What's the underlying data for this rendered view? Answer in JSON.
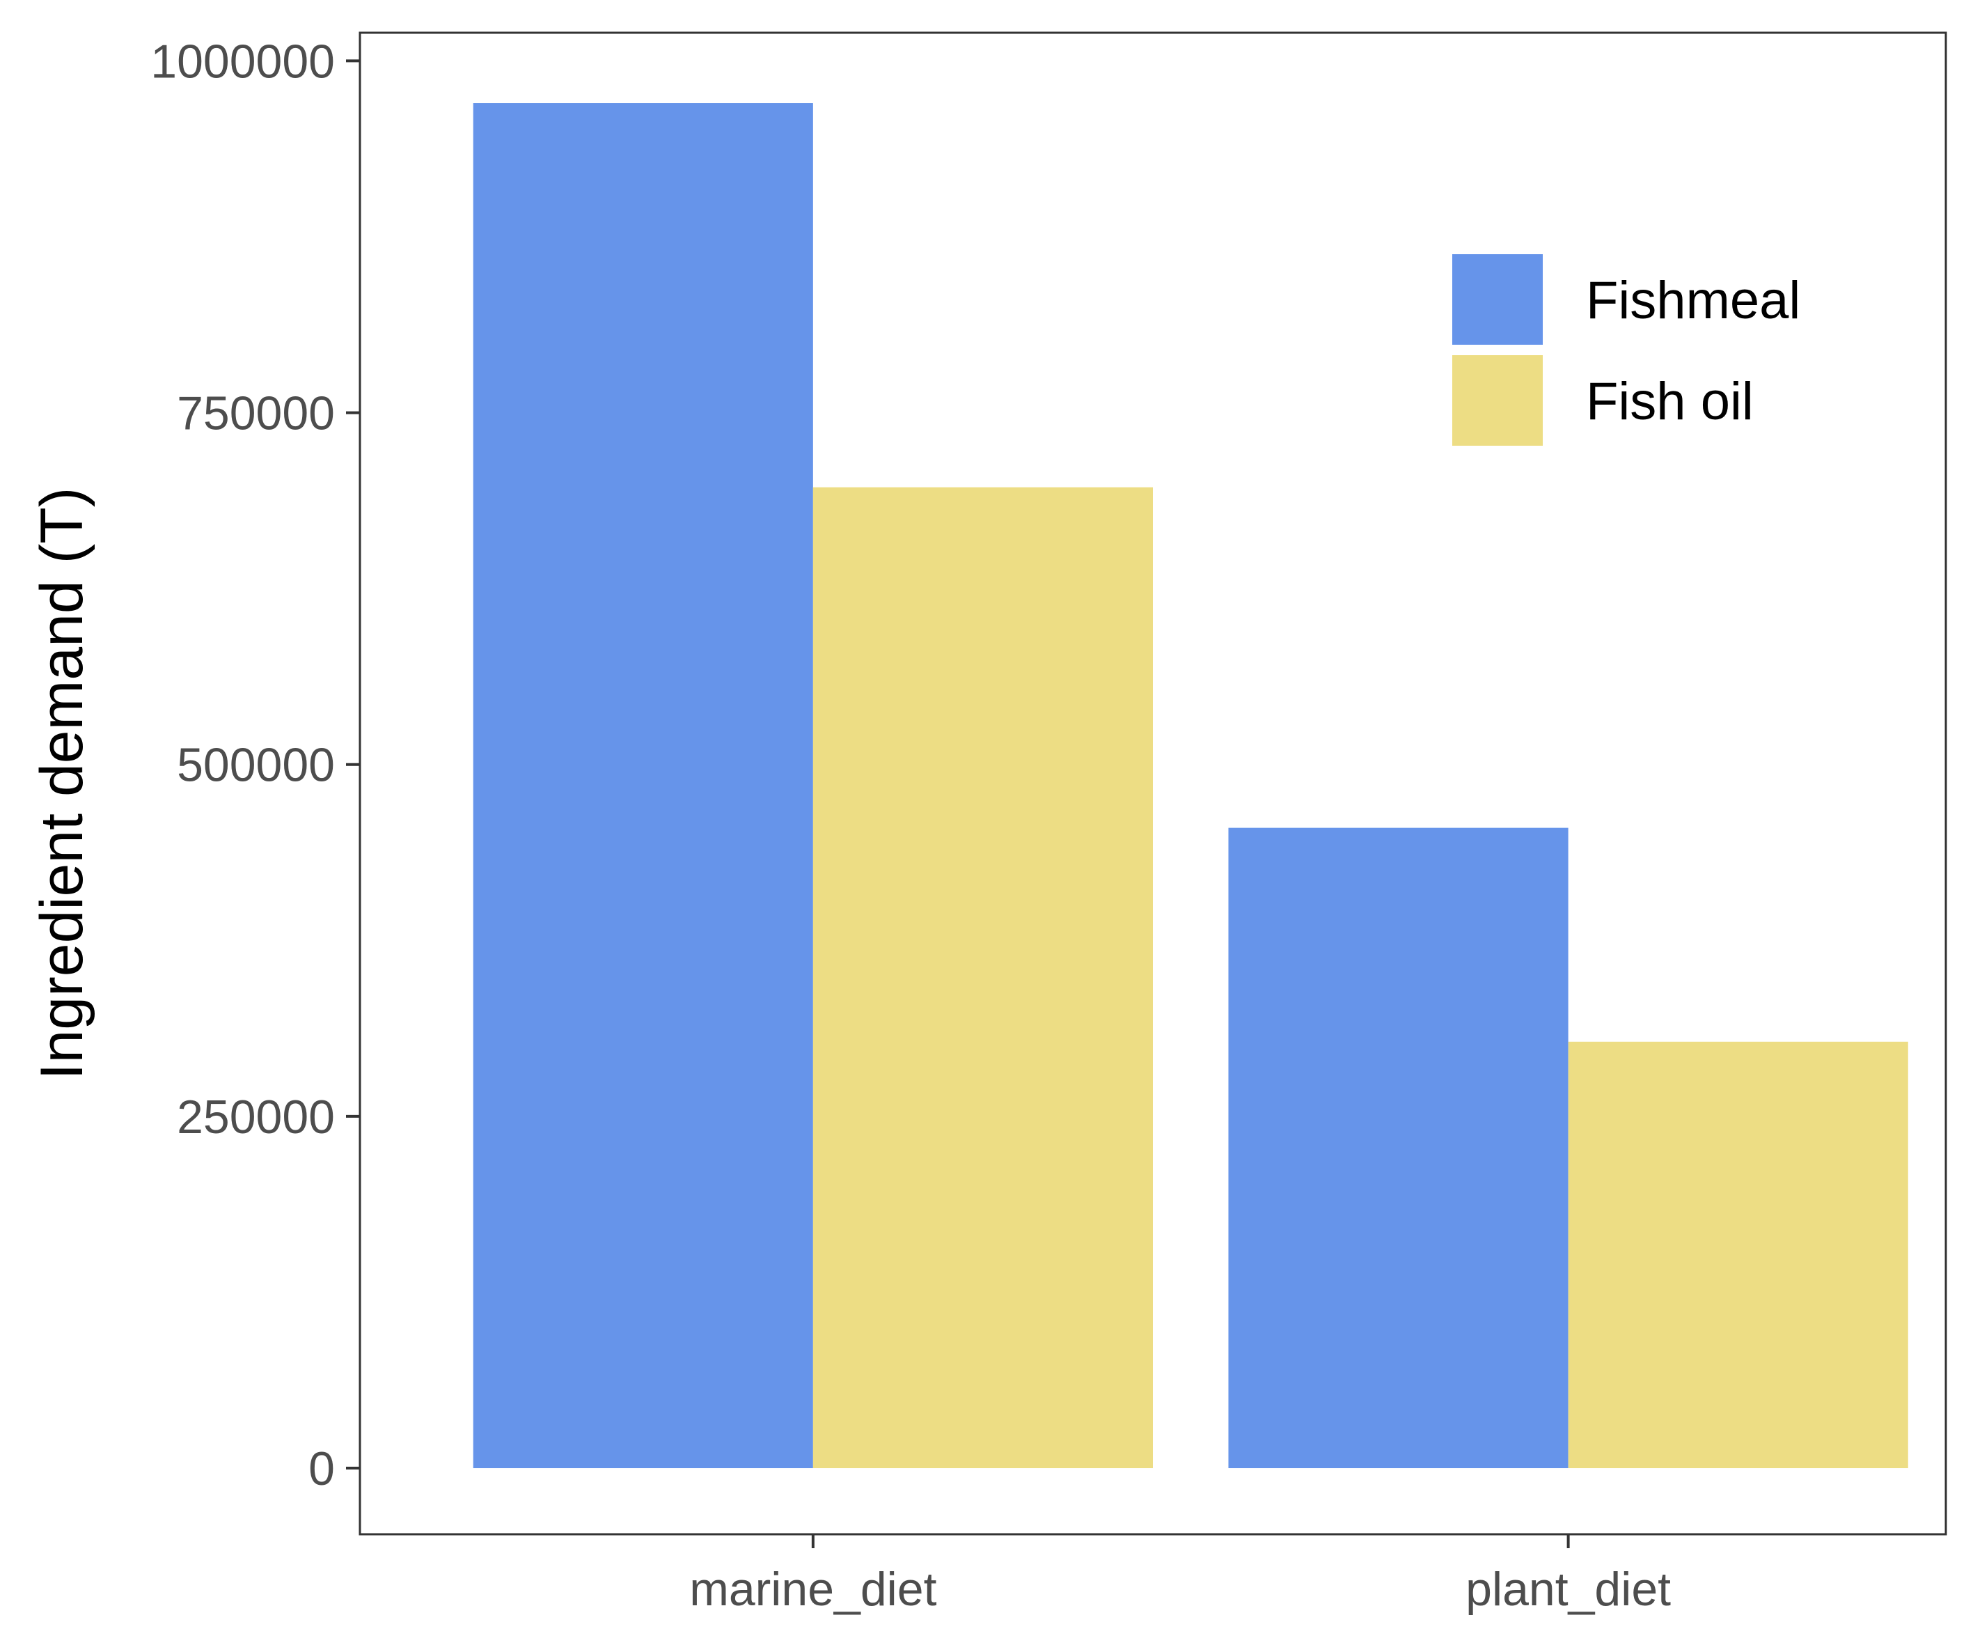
{
  "colors": {
    "fishmeal": "#6694EA",
    "fish_oil": "#EDDD84",
    "panel_border": "#333333",
    "tick_text": "#4d4d4d"
  },
  "chart_data": {
    "type": "bar",
    "title": "",
    "xlabel": "",
    "ylabel": "Ingredient demand (T)",
    "categories": [
      "marine_diet",
      "plant_diet"
    ],
    "series": [
      {
        "name": "Fishmeal",
        "values": [
          970000,
          455000
        ]
      },
      {
        "name": "Fish oil",
        "values": [
          697000,
          303000
        ]
      }
    ],
    "ylim": [
      -47000,
      1020000
    ],
    "yticks": [
      0,
      250000,
      500000,
      750000,
      1000000
    ],
    "ytick_labels": [
      "0",
      "250000",
      "500000",
      "750000",
      "1000000"
    ],
    "grid": false,
    "legend_position": "top-right"
  }
}
